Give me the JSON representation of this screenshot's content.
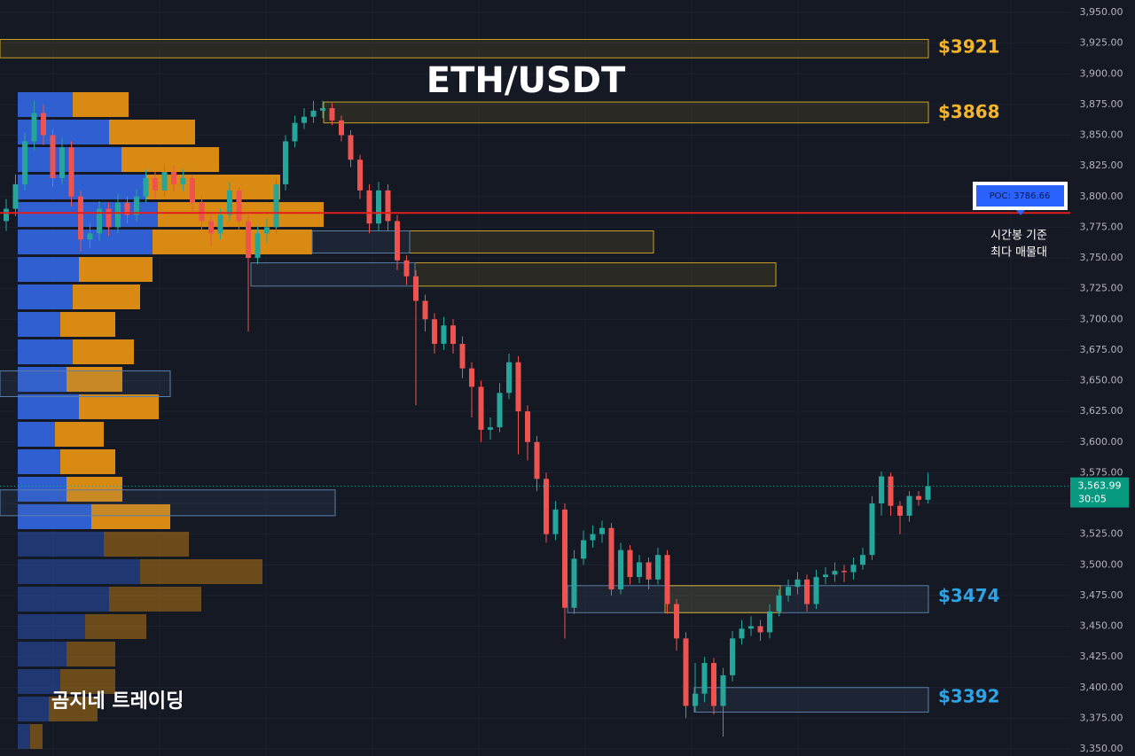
{
  "chart_data": {
    "type": "candlestick",
    "title": "ETH/USDT",
    "watermark": "곰지네 트레이딩",
    "up_color": "#26a69a",
    "down_color": "#ef5350",
    "ylim": [
      3350,
      3950
    ],
    "yticks": [
      {
        "value": 3350,
        "label": "3,350.00"
      },
      {
        "value": 3375,
        "label": "3,375.00"
      },
      {
        "value": 3400,
        "label": "3,400.00"
      },
      {
        "value": 3425,
        "label": "3,425.00"
      },
      {
        "value": 3450,
        "label": "3,450.00"
      },
      {
        "value": 3475,
        "label": "3,475.00"
      },
      {
        "value": 3500,
        "label": "3,500.00"
      },
      {
        "value": 3525,
        "label": "3,525.00"
      },
      {
        "value": 3550,
        "label": "3,550.00"
      },
      {
        "value": 3575,
        "label": "3,575.00"
      },
      {
        "value": 3600,
        "label": "3,600.00"
      },
      {
        "value": 3625,
        "label": "3,625.00"
      },
      {
        "value": 3650,
        "label": "3,650.00"
      },
      {
        "value": 3675,
        "label": "3,675.00"
      },
      {
        "value": 3700,
        "label": "3,700.00"
      },
      {
        "value": 3725,
        "label": "3,725.00"
      },
      {
        "value": 3750,
        "label": "3,750.00"
      },
      {
        "value": 3775,
        "label": "3,775.00"
      },
      {
        "value": 3800,
        "label": "3,800.00"
      },
      {
        "value": 3825,
        "label": "3,825.00"
      },
      {
        "value": 3850,
        "label": "3,850.00"
      },
      {
        "value": 3875,
        "label": "3,875.00"
      },
      {
        "value": 3900,
        "label": "3,900.00"
      },
      {
        "value": 3925,
        "label": "3,925.00"
      },
      {
        "value": 3950,
        "label": "3,950.00"
      }
    ],
    "grid": true,
    "open": [
      3780,
      3790,
      3810,
      3845,
      3868,
      3850,
      3815,
      3840,
      3800,
      3765,
      3770,
      3790,
      3775,
      3795,
      3785,
      3800,
      3815,
      3805,
      3820,
      3810,
      3815,
      3795,
      3780,
      3770,
      3785,
      3805,
      3780,
      3750,
      3770,
      3775,
      3810,
      3845,
      3860,
      3865,
      3870,
      3872,
      3862,
      3850,
      3830,
      3805,
      3778,
      3805,
      3780,
      3748,
      3735,
      3715,
      3700,
      3680,
      3695,
      3680,
      3660,
      3645,
      3610,
      3612,
      3640,
      3665,
      3625,
      3600,
      3570,
      3525,
      3545,
      3465,
      3505,
      3520,
      3525,
      3530,
      3480,
      3512,
      3490,
      3502,
      3488,
      3508,
      3468,
      3440,
      3385,
      3395,
      3420,
      3385,
      3410,
      3440,
      3448,
      3450,
      3445,
      3462,
      3475,
      3482,
      3488,
      3468,
      3490,
      3492,
      3495,
      3494,
      3500,
      3508,
      3550,
      3572,
      3548,
      3540,
      3556,
      3553
    ],
    "high": [
      3798,
      3818,
      3852,
      3878,
      3875,
      3855,
      3848,
      3845,
      3805,
      3778,
      3796,
      3795,
      3802,
      3800,
      3806,
      3822,
      3820,
      3826,
      3825,
      3822,
      3818,
      3800,
      3785,
      3790,
      3812,
      3808,
      3785,
      3776,
      3782,
      3815,
      3850,
      3866,
      3872,
      3878,
      3878,
      3876,
      3866,
      3854,
      3834,
      3810,
      3812,
      3810,
      3785,
      3752,
      3740,
      3720,
      3705,
      3702,
      3700,
      3686,
      3665,
      3650,
      3620,
      3648,
      3672,
      3670,
      3630,
      3605,
      3575,
      3552,
      3550,
      3512,
      3528,
      3532,
      3536,
      3534,
      3518,
      3516,
      3508,
      3506,
      3514,
      3512,
      3472,
      3445,
      3420,
      3425,
      3424,
      3416,
      3446,
      3455,
      3458,
      3455,
      3468,
      3480,
      3488,
      3494,
      3492,
      3496,
      3498,
      3502,
      3500,
      3506,
      3514,
      3556,
      3576,
      3575,
      3552,
      3560,
      3560,
      3575
    ],
    "low": [
      3772,
      3784,
      3805,
      3838,
      3842,
      3808,
      3810,
      3792,
      3755,
      3758,
      3764,
      3768,
      3770,
      3778,
      3780,
      3795,
      3798,
      3800,
      3804,
      3805,
      3788,
      3772,
      3760,
      3765,
      3780,
      3772,
      3690,
      3745,
      3762,
      3770,
      3805,
      3840,
      3855,
      3860,
      3864,
      3858,
      3845,
      3824,
      3798,
      3770,
      3772,
      3772,
      3740,
      3728,
      3630,
      3690,
      3672,
      3675,
      3672,
      3652,
      3620,
      3600,
      3602,
      3608,
      3635,
      3590,
      3585,
      3560,
      3518,
      3520,
      3440,
      3460,
      3500,
      3514,
      3518,
      3475,
      3476,
      3484,
      3485,
      3480,
      3484,
      3460,
      3430,
      3375,
      3380,
      3388,
      3378,
      3360,
      3405,
      3435,
      3442,
      3438,
      3440,
      3458,
      3470,
      3476,
      3462,
      3464,
      3484,
      3486,
      3486,
      3488,
      3496,
      3504,
      3540,
      3540,
      3525,
      3535,
      3548,
      3550
    ],
    "close": [
      3790,
      3810,
      3845,
      3868,
      3850,
      3815,
      3840,
      3800,
      3765,
      3770,
      3790,
      3775,
      3795,
      3785,
      3800,
      3815,
      3805,
      3820,
      3810,
      3815,
      3795,
      3780,
      3770,
      3785,
      3805,
      3780,
      3750,
      3770,
      3775,
      3810,
      3845,
      3860,
      3865,
      3870,
      3872,
      3862,
      3850,
      3830,
      3805,
      3778,
      3805,
      3780,
      3748,
      3735,
      3715,
      3700,
      3680,
      3695,
      3680,
      3660,
      3645,
      3610,
      3612,
      3640,
      3665,
      3625,
      3600,
      3570,
      3525,
      3545,
      3465,
      3505,
      3520,
      3525,
      3530,
      3480,
      3512,
      3490,
      3502,
      3488,
      3508,
      3468,
      3440,
      3385,
      3395,
      3420,
      3385,
      3410,
      3440,
      3448,
      3450,
      3445,
      3462,
      3475,
      3482,
      3488,
      3468,
      3490,
      3492,
      3495,
      3494,
      3500,
      3508,
      3550,
      3572,
      3548,
      3540,
      3556,
      3553,
      3564
    ],
    "volume_profile": {
      "buy_color": "#2f5fd0",
      "sell_color": "#d88a12",
      "buy": [
        62,
        103,
        117,
        145,
        158,
        152,
        69,
        62,
        48,
        62,
        55,
        69,
        42,
        48,
        55,
        83,
        97,
        138,
        103,
        76,
        55,
        48,
        35,
        14
      ],
      "sell": [
        63,
        97,
        110,
        151,
        187,
        180,
        83,
        76,
        62,
        69,
        63,
        90,
        55,
        62,
        63,
        89,
        96,
        138,
        104,
        69,
        55,
        62,
        55,
        14
      ]
    },
    "zones": [
      {
        "top": 3928,
        "bottom": 3913,
        "color": "#c9a227"
      },
      {
        "top": 3877,
        "bottom": 3860,
        "color": "#c9a227"
      },
      {
        "top": 3772,
        "bottom": 3754,
        "color": "#c9a227"
      },
      {
        "top": 3772,
        "bottom": 3754,
        "color": "#5b7fa8"
      },
      {
        "top": 3746,
        "bottom": 3727,
        "color": "#c9a227"
      },
      {
        "top": 3746,
        "bottom": 3727,
        "color": "#5b7fa8"
      },
      {
        "top": 3658,
        "bottom": 3637,
        "color": "#5b7fa8"
      },
      {
        "top": 3561,
        "bottom": 3540,
        "color": "#5b7fa8"
      },
      {
        "top": 3483,
        "bottom": 3461,
        "color": "#5b7fa8"
      },
      {
        "top": 3483,
        "bottom": 3461,
        "color": "#c9a227"
      },
      {
        "top": 3400,
        "bottom": 3380,
        "color": "#5b7fa8"
      }
    ],
    "levels": [
      {
        "value": 3921,
        "label": "$3921",
        "color": "#f5b52a"
      },
      {
        "value": 3868,
        "label": "$3868",
        "color": "#f5b52a"
      },
      {
        "value": 3474,
        "label": "$3474",
        "color": "#2ea3e6"
      },
      {
        "value": 3392,
        "label": "$3392",
        "color": "#2ea3e6"
      }
    ],
    "poc": {
      "value": 3786.66,
      "label": "POC: 3786.66",
      "color": "#e01e1e"
    },
    "poc_note": [
      "시간봉 기준",
      "최다 매물대"
    ],
    "last_price": {
      "value": 3563.99,
      "label": "3,563.99"
    },
    "countdown": "30:05"
  }
}
